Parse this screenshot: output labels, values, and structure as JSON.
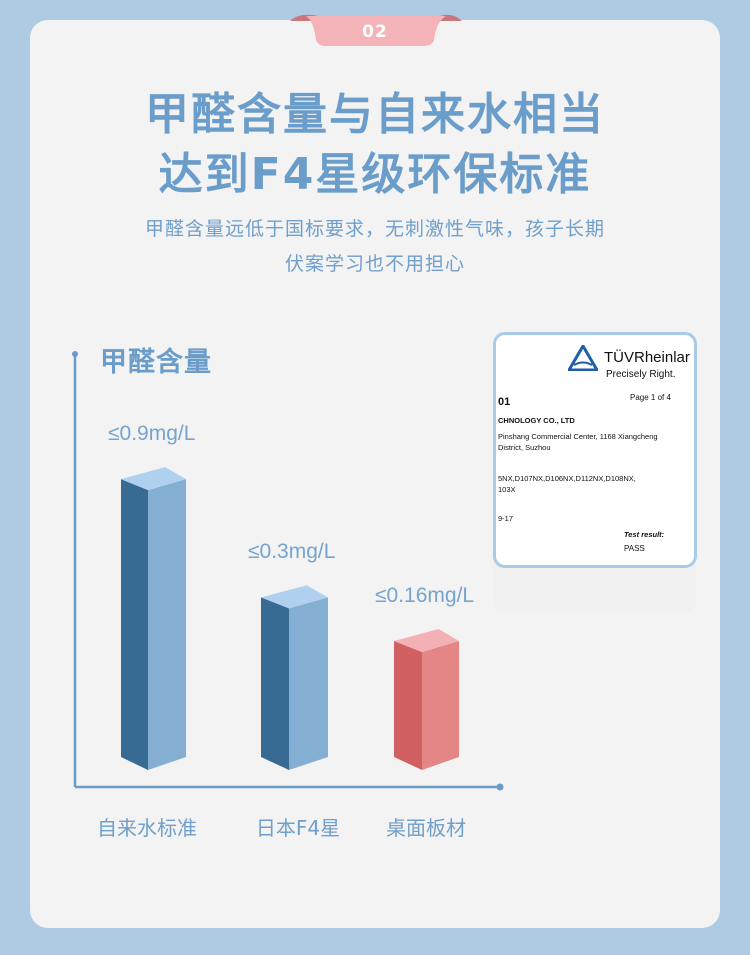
{
  "badge": {
    "number": "02"
  },
  "heading": {
    "line1": "甲醛含量与自来水相当",
    "line2": "达到F4星级环保标准"
  },
  "subtitle": {
    "line1": "甲醛含量远低于国标要求，无刺激性气味，孩子长期",
    "line2": "伏案学习也不用担心"
  },
  "colors": {
    "background": "#aecbe3",
    "card": "#f3f3f3",
    "accent_blue": "#6b9dca",
    "badge_pink": "#f4b3b8",
    "bar_blue_dark": "#386b93",
    "bar_blue_light": "#84afd3",
    "bar_red_dark": "#d16062",
    "bar_red_light": "#e48686"
  },
  "chart_data": {
    "type": "bar",
    "title": "甲醛含量",
    "categories": [
      "自来水标准",
      "日本F4星",
      "桌面板材"
    ],
    "values": [
      0.9,
      0.3,
      0.16
    ],
    "unit": "mg/L",
    "data_labels": [
      "≤0.9mg/L",
      "≤0.3mg/L",
      "≤0.16mg/L"
    ],
    "style": "3d-isometric",
    "grid": false
  },
  "certificate": {
    "brand": "TÜVRheinlar",
    "tagline": "Precisely Right.",
    "number": "01",
    "page": "Page 1 of 4",
    "company": "CHNOLOGY CO., LTD",
    "address1": "Pinshang Commercial Center, 1168 Xiangcheng",
    "address2": "District, Suzhou",
    "models1": "5NX,D107NX,D106NX,D112NX,D108NX,",
    "models2": "103X",
    "date": "9-17",
    "result_label": "Test result:",
    "result": "PASS"
  }
}
